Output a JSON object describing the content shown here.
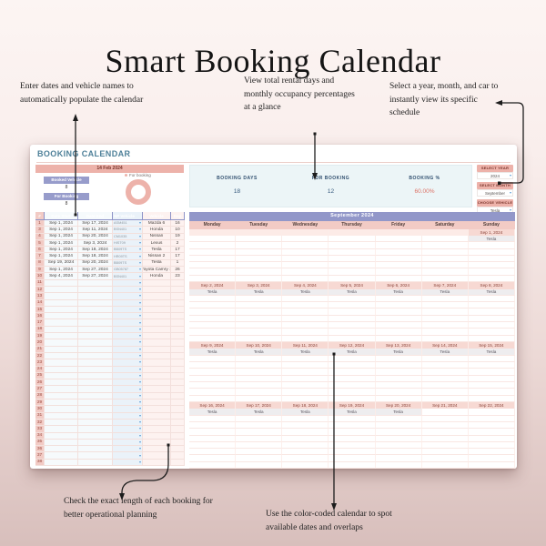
{
  "page_title": "Smart Booking Calendar",
  "annotations": {
    "top_left": "Enter dates and vehicle names to automatically populate the calendar",
    "top_center": "View total rental days and monthly occupancy percentages at a glance",
    "top_right": "Select a year, month, and car to instantly view its specific schedule",
    "bottom_left": "Check the exact length of each booking for better operational planning",
    "bottom_center": "Use the color-coded calendar to spot available dates and overlaps"
  },
  "sheet": {
    "title": "BOOKING CALENDAR",
    "date_banner": "14 Feb 2024",
    "booked_vehicle_label": "Booked Vehicle",
    "booked_vehicle_value": "8",
    "for_booking_label": "For Booking",
    "for_booking_value": "8",
    "donut_legend": "For booking",
    "stats": [
      {
        "label": "BOOKING DAYS",
        "value": "18"
      },
      {
        "label": "FOR BOOKING",
        "value": "12"
      },
      {
        "label": "BOOKING %",
        "value": "60.00%"
      }
    ],
    "selectors": [
      {
        "label": "SELECT YEAR",
        "value": "2024"
      },
      {
        "label": "SELECT MONTH",
        "value": "September"
      },
      {
        "label": "CHOOSE VEHICLE",
        "value": "Tesla"
      }
    ],
    "table": {
      "headers": [
        "#",
        "Date Start",
        "Date End",
        "NP Vehicle",
        "Vehicle",
        "Day"
      ],
      "rows": [
        {
          "n": "1",
          "start": "Sep 1, 2024",
          "end": "Sep 17, 2024",
          "np": "ASM451",
          "vehicle": "Mazda 6",
          "day": "16"
        },
        {
          "n": "3",
          "start": "Sep 1, 2024",
          "end": "Sep 11, 2024",
          "np": "BSN401",
          "vehicle": "Honda",
          "day": "10"
        },
        {
          "n": "4",
          "start": "Sep 1, 2024",
          "end": "Sep 20, 2024",
          "np": "CM1035",
          "vehicle": "Nissan",
          "day": "19"
        },
        {
          "n": "5",
          "start": "Sep 1, 2024",
          "end": "Sep 3, 2024",
          "np": "HIST09",
          "vehicle": "Lexus",
          "day": "2"
        },
        {
          "n": "6",
          "start": "Sep 1, 2024",
          "end": "Sep 18, 2024",
          "np": "BB09TS",
          "vehicle": "Tesla",
          "day": "17"
        },
        {
          "n": "7",
          "start": "Sep 1, 2024",
          "end": "Sep 18, 2024",
          "np": "HR09TS",
          "vehicle": "Nissan 2",
          "day": "17"
        },
        {
          "n": "8",
          "start": "Sep 19, 2024",
          "end": "Sep 20, 2024",
          "np": "BB09TS",
          "vehicle": "Tesla",
          "day": "1"
        },
        {
          "n": "9",
          "start": "Sep 1, 2024",
          "end": "Sep 27, 2024",
          "np": "GB05787",
          "vehicle": "Toyota Camry 1",
          "day": "26"
        },
        {
          "n": "10",
          "start": "Sep 4, 2024",
          "end": "Sep 27, 2024",
          "np": "BSN401",
          "vehicle": "Honda",
          "day": "23"
        }
      ],
      "empty_row_first_number": 11,
      "empty_row_count": 28
    },
    "calendar": {
      "month_title": "September 2024",
      "weekdays": [
        "Monday",
        "Tuesday",
        "Wednesday",
        "Thursday",
        "Friday",
        "Saturday",
        "Sunday"
      ],
      "weeks": [
        {
          "dates": [
            "",
            "",
            "",
            "",
            "",
            "",
            "Sep 1, 2024"
          ],
          "vehicles": [
            "",
            "",
            "",
            "",
            "",
            "",
            "Tesla"
          ],
          "gap_rows": 6
        },
        {
          "dates": [
            "Sep 2, 2024",
            "Sep 3, 2024",
            "Sep 4, 2024",
            "Sep 5, 2024",
            "Sep 6, 2024",
            "Sep 7, 2024",
            "Sep 8, 2024"
          ],
          "vehicles": [
            "Tesla",
            "Tesla",
            "Tesla",
            "Tesla",
            "Tesla",
            "Tesla",
            "Tesla"
          ],
          "gap_rows": 7
        },
        {
          "dates": [
            "Sep 9, 2024",
            "Sep 10, 2024",
            "Sep 11, 2024",
            "Sep 12, 2024",
            "Sep 13, 2024",
            "Sep 14, 2024",
            "Sep 15, 2024"
          ],
          "vehicles": [
            "Tesla",
            "Tesla",
            "Tesla",
            "Tesla",
            "Tesla",
            "Tesla",
            "Tesla"
          ],
          "gap_rows": 7
        },
        {
          "dates": [
            "Sep 16, 2024",
            "Sep 17, 2024",
            "Sep 18, 2024",
            "Sep 19, 2024",
            "Sep 20, 2024",
            "Sep 21, 2024",
            "Sep 22, 2024"
          ],
          "vehicles": [
            "Tesla",
            "Tesla",
            "Tesla",
            "Tesla",
            "Tesla",
            "",
            ""
          ],
          "gap_rows": 8
        }
      ]
    }
  },
  "icons": {
    "dropdown_arrow": "▾",
    "legend_dot": "for-booking-dot"
  },
  "colors": {
    "accent_pink": "#edb2aa",
    "accent_purple": "#9297c9",
    "table_header_purple": "#8e93c7",
    "sheet_title_teal": "#4e8099",
    "stats_bg": "#ecf5f7",
    "booking_pct_value": "#dd7165",
    "date_cell_bg": "#f7d9d3",
    "vehicle_cell_bg": "#eeedef",
    "page_bg_top": "#fcf5f3",
    "page_bg_bottom": "#d8bfbc"
  }
}
